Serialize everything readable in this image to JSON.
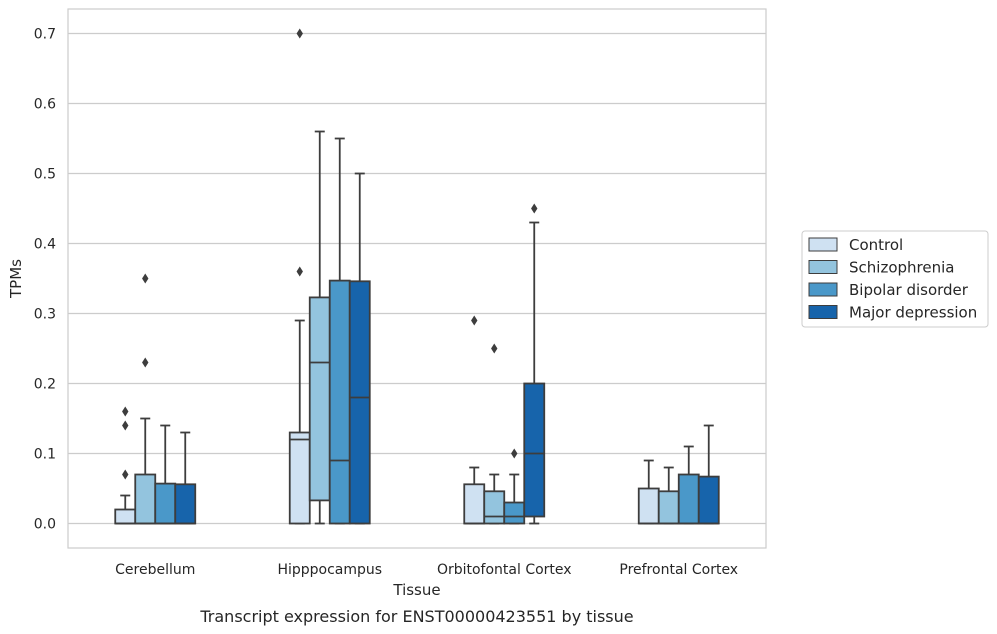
{
  "chart_data": {
    "type": "boxplot",
    "xlabel": "Tissue",
    "ylabel": "TPMs",
    "caption": "Transcript expression for ENST00000423551 by tissue",
    "ylim": [
      -0.035,
      0.735
    ],
    "yticks": [
      "0.0",
      "0.1",
      "0.2",
      "0.3",
      "0.4",
      "0.5",
      "0.6",
      "0.7"
    ],
    "ytick_values": [
      0,
      0.1,
      0.2,
      0.3,
      0.4,
      0.5,
      0.6,
      0.7
    ],
    "grid": "horizontal",
    "legend_position": "right",
    "categories": [
      "Cerebellum",
      "Hipppocampus",
      "Orbitofontal Cortex",
      "Prefrontal Cortex"
    ],
    "series": [
      {
        "name": "Control",
        "color": "#cfe1f2",
        "boxes": [
          {
            "whislo": 0,
            "q1": 0,
            "med": 0,
            "q3": 0.02,
            "whishi": 0.04,
            "fliers": [
              0.07,
              0.14,
              0.16
            ]
          },
          {
            "whislo": 0,
            "q1": 0,
            "med": 0.12,
            "q3": 0.13,
            "whishi": 0.29,
            "fliers": [
              0.36,
              0.7
            ]
          },
          {
            "whislo": 0,
            "q1": 0,
            "med": 0,
            "q3": 0.056,
            "whishi": 0.08,
            "fliers": [
              0.29
            ]
          },
          {
            "whislo": 0,
            "q1": 0,
            "med": 0,
            "q3": 0.05,
            "whishi": 0.09,
            "fliers": []
          }
        ]
      },
      {
        "name": "Schizophrenia",
        "color": "#93c4de",
        "boxes": [
          {
            "whislo": 0,
            "q1": 0,
            "med": 0,
            "q3": 0.07,
            "whishi": 0.15,
            "fliers": [
              0.23,
              0.35
            ]
          },
          {
            "whislo": 0,
            "q1": 0.033,
            "med": 0.23,
            "q3": 0.323,
            "whishi": 0.56,
            "fliers": []
          },
          {
            "whislo": 0,
            "q1": 0,
            "med": 0.01,
            "q3": 0.046,
            "whishi": 0.07,
            "fliers": [
              0.25
            ]
          },
          {
            "whislo": 0,
            "q1": 0,
            "med": 0,
            "q3": 0.046,
            "whishi": 0.08,
            "fliers": []
          }
        ]
      },
      {
        "name": "Bipolar disorder",
        "color": "#4a98c9",
        "boxes": [
          {
            "whislo": 0,
            "q1": 0,
            "med": 0,
            "q3": 0.057,
            "whishi": 0.14,
            "fliers": []
          },
          {
            "whislo": 0,
            "q1": 0,
            "med": 0.09,
            "q3": 0.347,
            "whishi": 0.55,
            "fliers": []
          },
          {
            "whislo": 0,
            "q1": 0,
            "med": 0.01,
            "q3": 0.03,
            "whishi": 0.07,
            "fliers": [
              0.1
            ]
          },
          {
            "whislo": 0,
            "q1": 0,
            "med": 0,
            "q3": 0.07,
            "whishi": 0.11,
            "fliers": []
          }
        ]
      },
      {
        "name": "Major depression",
        "color": "#1764ab",
        "boxes": [
          {
            "whislo": 0,
            "q1": 0,
            "med": 0,
            "q3": 0.056,
            "whishi": 0.13,
            "fliers": []
          },
          {
            "whislo": 0,
            "q1": 0,
            "med": 0.18,
            "q3": 0.346,
            "whishi": 0.5,
            "fliers": []
          },
          {
            "whislo": 0,
            "q1": 0.01,
            "med": 0.1,
            "q3": 0.2,
            "whishi": 0.43,
            "fliers": [
              0.45
            ]
          },
          {
            "whislo": 0,
            "q1": 0,
            "med": 0,
            "q3": 0.067,
            "whishi": 0.14,
            "fliers": []
          }
        ]
      }
    ]
  }
}
